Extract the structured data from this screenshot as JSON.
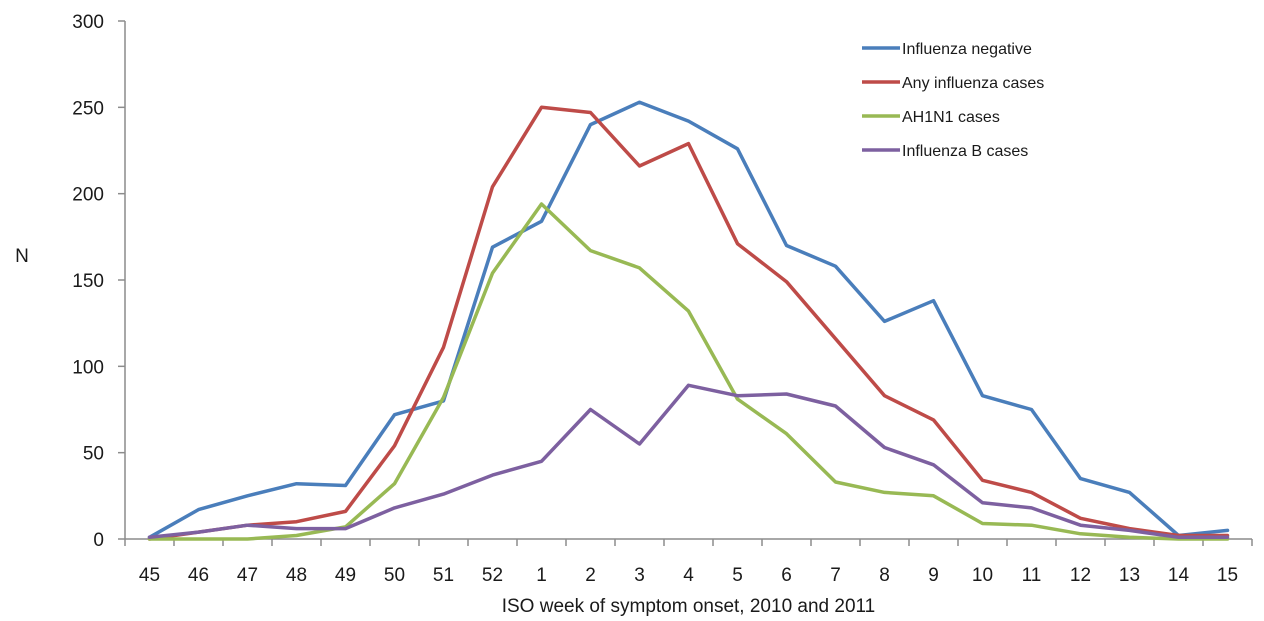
{
  "chart_data": {
    "type": "line",
    "title": "",
    "xlabel": "ISO week of symptom onset, 2010 and 2011",
    "ylabel": "N",
    "ylim": [
      0,
      300
    ],
    "yticks": [
      "0",
      "50",
      "100",
      "150",
      "200",
      "250",
      "300"
    ],
    "grid": false,
    "legend_position": "top-right",
    "categories": [
      "45",
      "46",
      "47",
      "48",
      "49",
      "50",
      "51",
      "52",
      "1",
      "2",
      "3",
      "4",
      "5",
      "6",
      "7",
      "8",
      "9",
      "10",
      "11",
      "12",
      "13",
      "14",
      "15"
    ],
    "series": [
      {
        "name": "Influenza negative",
        "color": "#4a7ebb",
        "values": [
          1,
          17,
          25,
          32,
          31,
          72,
          80,
          169,
          184,
          240,
          253,
          242,
          226,
          170,
          158,
          126,
          138,
          83,
          75,
          35,
          27,
          2,
          5
        ]
      },
      {
        "name": "Any influenza cases",
        "color": "#be4b48",
        "values": [
          0,
          4,
          8,
          10,
          16,
          54,
          111,
          204,
          250,
          247,
          216,
          229,
          171,
          149,
          116,
          83,
          69,
          34,
          27,
          12,
          6,
          2,
          2
        ]
      },
      {
        "name": "AH1N1 cases",
        "color": "#98b954",
        "values": [
          0,
          0,
          0,
          2,
          7,
          32,
          82,
          154,
          194,
          167,
          157,
          132,
          81,
          61,
          33,
          27,
          25,
          9,
          8,
          3,
          1,
          0,
          0
        ]
      },
      {
        "name": "Influenza B cases",
        "color": "#7d60a0",
        "values": [
          1,
          4,
          8,
          6,
          6,
          18,
          26,
          37,
          45,
          75,
          55,
          89,
          83,
          84,
          77,
          53,
          43,
          21,
          18,
          8,
          5,
          1,
          1
        ]
      }
    ]
  }
}
